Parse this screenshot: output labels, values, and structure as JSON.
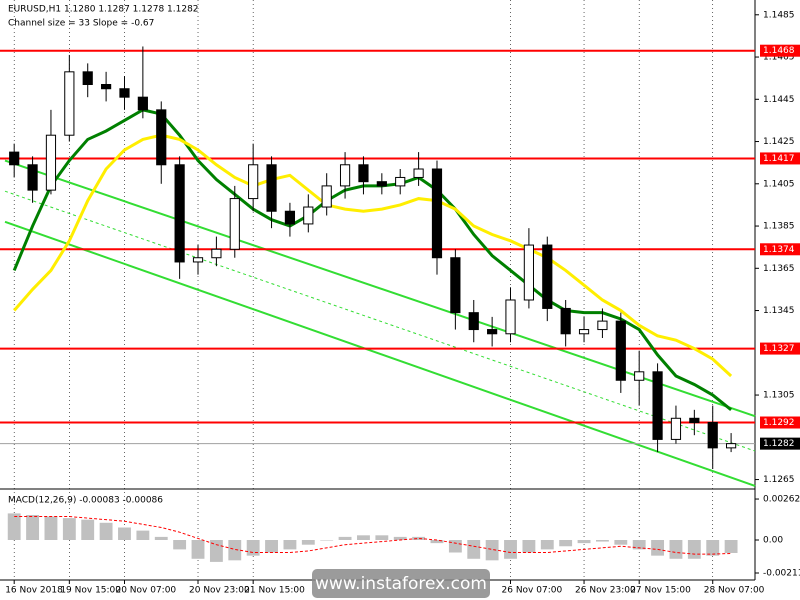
{
  "chart_data": {
    "type": "candlestick",
    "title": "EURUSD,H1  1.1280 1.1287 1.1278 1.1282",
    "subtitle": "Channel size = 33 Slope = -0.67",
    "watermark": "www.instaforex.com",
    "up_color": "#ffffff",
    "down_color": "#000000",
    "open": [
      1.142,
      1.1414,
      1.1402,
      1.1428,
      1.1458,
      1.1452,
      1.145,
      1.1446,
      1.144,
      1.1414,
      1.1368,
      1.137,
      1.1374,
      1.1398,
      1.1414,
      1.1392,
      1.1386,
      1.1394,
      1.1404,
      1.1414,
      1.1406,
      1.1404,
      1.1408,
      1.1412,
      1.137,
      1.1344,
      1.1336,
      1.1334,
      1.135,
      1.1376,
      1.1346,
      1.1334,
      1.1336,
      1.134,
      1.1312,
      1.1316,
      1.1284,
      1.1294,
      1.1292,
      1.128
    ],
    "high": [
      1.1424,
      1.1418,
      1.144,
      1.1466,
      1.1462,
      1.1458,
      1.1456,
      1.147,
      1.1444,
      1.1418,
      1.1376,
      1.138,
      1.1404,
      1.1424,
      1.1418,
      1.1396,
      1.14,
      1.141,
      1.142,
      1.1418,
      1.141,
      1.1412,
      1.142,
      1.1416,
      1.1374,
      1.135,
      1.1342,
      1.1356,
      1.1384,
      1.138,
      1.135,
      1.1342,
      1.1346,
      1.1344,
      1.1326,
      1.132,
      1.13,
      1.1298,
      1.13,
      1.1287
    ],
    "low": [
      1.1408,
      1.1396,
      1.14,
      1.1425,
      1.1446,
      1.1444,
      1.144,
      1.1436,
      1.1405,
      1.136,
      1.1362,
      1.1366,
      1.137,
      1.1392,
      1.1384,
      1.138,
      1.1382,
      1.139,
      1.1398,
      1.14,
      1.14,
      1.14,
      1.1404,
      1.1362,
      1.1336,
      1.133,
      1.1328,
      1.133,
      1.1346,
      1.134,
      1.1328,
      1.133,
      1.1332,
      1.1306,
      1.13,
      1.1278,
      1.1282,
      1.1286,
      1.127,
      1.1278
    ],
    "close": [
      1.1414,
      1.1402,
      1.1428,
      1.1458,
      1.1452,
      1.145,
      1.1446,
      1.144,
      1.1414,
      1.1368,
      1.137,
      1.1374,
      1.1398,
      1.1414,
      1.1392,
      1.1386,
      1.1394,
      1.1404,
      1.1414,
      1.1406,
      1.1404,
      1.1408,
      1.1412,
      1.137,
      1.1344,
      1.1336,
      1.1334,
      1.135,
      1.1376,
      1.1346,
      1.1334,
      1.1336,
      1.134,
      1.1312,
      1.1316,
      1.1284,
      1.1294,
      1.1292,
      1.128,
      1.1282
    ],
    "series": [
      {
        "color": "#008000",
        "values": [
          1.1364,
          1.1385,
          1.1404,
          1.1416,
          1.1426,
          1.143,
          1.1435,
          1.144,
          1.1438,
          1.1428,
          1.1416,
          1.1407,
          1.14,
          1.1393,
          1.1388,
          1.1385,
          1.139,
          1.1397,
          1.1402,
          1.1404,
          1.1404,
          1.1405,
          1.1408,
          1.1402,
          1.1393,
          1.1381,
          1.1371,
          1.1364,
          1.1357,
          1.135,
          1.1345,
          1.1344,
          1.1344,
          1.1341,
          1.1336,
          1.1324,
          1.1314,
          1.131,
          1.1305,
          1.1298
        ]
      },
      {
        "color": "#ffee00",
        "values": [
          1.1345,
          1.1355,
          1.1364,
          1.1378,
          1.1397,
          1.1412,
          1.1421,
          1.1426,
          1.1428,
          1.1426,
          1.1421,
          1.1414,
          1.1408,
          1.1404,
          1.1407,
          1.1409,
          1.1402,
          1.1395,
          1.1393,
          1.1392,
          1.1393,
          1.1395,
          1.1398,
          1.1397,
          1.1393,
          1.1385,
          1.1381,
          1.1378,
          1.1374,
          1.137,
          1.1364,
          1.1357,
          1.135,
          1.1345,
          1.1338,
          1.1333,
          1.1331,
          1.1327,
          1.1322,
          1.1314
        ]
      }
    ],
    "channel": {
      "color": "#33dd33",
      "x": [
        -0.5,
        40.3
      ],
      "upper": [
        1.1416,
        1.1295
      ],
      "lower": [
        1.1387,
        1.1262
      ]
    },
    "levels": {
      "color": "#ff0000",
      "values": [
        1.1468,
        1.1417,
        1.1374,
        1.1327,
        1.1292
      ]
    },
    "current": {
      "color": "#000000",
      "value": 1.1282
    },
    "xlim": [
      -0.5,
      40.3
    ],
    "ylim": [
      1.1261,
      1.1492
    ],
    "yticks": [
      1.1485,
      1.1465,
      1.1445,
      1.1425,
      1.1405,
      1.1385,
      1.1365,
      1.1345,
      1.1305,
      1.1265
    ],
    "xticks": [
      {
        "value": 0,
        "label": "16 Nov 2018"
      },
      {
        "value": 3,
        "label": "19 Nov 15:00"
      },
      {
        "value": 6,
        "label": "20 Nov 07:00"
      },
      {
        "value": 10,
        "label": "20 Nov 23:00"
      },
      {
        "value": 13,
        "label": "21 Nov 15:00"
      },
      {
        "value": 27,
        "label": "26 Nov 07:00"
      },
      {
        "value": 31,
        "label": "26 Nov 23:00"
      },
      {
        "value": 34,
        "label": "27 Nov 15:00"
      },
      {
        "value": 38,
        "label": "28 Nov 07:00"
      }
    ],
    "macd": {
      "title": "MACD(12,26,9) -0.00083 -0.00086",
      "color": "#c0c0c0",
      "signal_color": "#ff0000",
      "ylim": [
        -0.00243,
        0.00307
      ],
      "yticks": [
        0.00262,
        {
          "value": 0,
          "label": "0.00"
        },
        -0.00211
      ],
      "values": [
        0.0017,
        0.0016,
        0.0015,
        0.0014,
        0.0013,
        0.0011,
        0.0008,
        0.0006,
        0.0002,
        -0.0006,
        -0.0012,
        -0.0014,
        -0.0013,
        -0.001,
        -0.0008,
        -0.0006,
        -0.0003,
        0.0,
        0.0002,
        0.0003,
        0.0003,
        0.0002,
        0.0002,
        -0.0002,
        -0.0008,
        -0.0012,
        -0.0013,
        -0.0012,
        -0.0008,
        -0.0006,
        -0.0004,
        -0.0002,
        -0.0001,
        -0.0003,
        -0.0006,
        -0.001,
        -0.0012,
        -0.0012,
        -0.001,
        -0.00083
      ],
      "signal": [
        0.0015,
        0.0015,
        0.0015,
        0.0015,
        0.0014,
        0.0013,
        0.0012,
        0.001,
        0.0008,
        0.0005,
        0.0001,
        -0.0003,
        -0.0006,
        -0.0008,
        -0.0008,
        -0.0008,
        -0.0007,
        -0.0005,
        -0.0003,
        -0.0002,
        -0.0001,
        0.0,
        0.0001,
        0.0,
        -0.0002,
        -0.0004,
        -0.0006,
        -0.0008,
        -0.0008,
        -0.0008,
        -0.0007,
        -0.0006,
        -0.0005,
        -0.0004,
        -0.0005,
        -0.0006,
        -0.0008,
        -0.0009,
        -0.0009,
        -0.00086
      ]
    }
  }
}
